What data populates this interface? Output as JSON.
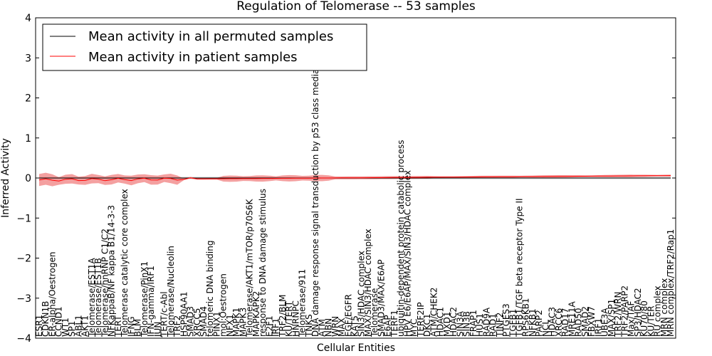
{
  "chart_data": {
    "type": "line",
    "title": "Regulation of Telomerase -- 53 samples",
    "xlabel": "Cellular Entities",
    "ylabel": "Inferred Activity",
    "ylim": [
      -4,
      4
    ],
    "yticks": [
      "4",
      "3",
      "2",
      "1",
      "0",
      "−1",
      "−2",
      "−3",
      "−4"
    ],
    "grid": false,
    "legend_position": "top-left",
    "legend": [
      {
        "label": "Mean activity in all permuted samples",
        "color": "#000000"
      },
      {
        "label": "Mean activity in patient samples",
        "color": "#ff0000"
      }
    ],
    "band_colors": {
      "patient": "#f08080",
      "permuted": "#c8c8c8"
    },
    "entities": [
      "ESR1",
      "CDKN1B",
      "ER-alpha/Oestrogen",
      "CCND1",
      "WT1",
      "SP1",
      "ABL1",
      "AKT1",
      "Telomerase/EST1A",
      "Telomerase/EST1B",
      "Telomerase/hnRNP C1/C2",
      "NFKappaB/NF kappa B1/14-3-3",
      "TERT",
      "Telomerase catalytic core complex",
      "IFNG",
      "BLM",
      "Telomerase/PinX1",
      "IFN-gamma/IRF1",
      "JUN",
      "TERT/c-Abl",
      "Telomerase/Nucleolin",
      "TRF2",
      "HSP90AA1",
      "SMAD3",
      "XRCC5",
      "SMAD4",
      "telomeric DNA binding",
      "PINX1",
      "mol:Oestrogen",
      "NFX1",
      "MAPK1",
      "MAPK3",
      "Telomerase/AKT1/mTOR/p70S6K",
      "MAPKAPK2",
      "response to DNA damage stimulus",
      "E2F1",
      "IRF1",
      "TRF2/BLM",
      "KU/TERT",
      "HNRNPC",
      "Telomerase/911",
      "TNKS",
      "DNA damage response signal transduction by p53 class mediator",
      "ATM",
      "NBN",
      "WRN",
      "MAX",
      "EGF/EGFR",
      "KAT5",
      "SIN3/HDAC complex",
      "MAX/SIN3/HDAC complex",
      "Telomerase",
      "SMAD3/MAX/E6AP",
      "E6AP",
      "TERF1",
      "ubiquitin-dependent protein catabolic process",
      "HPV E6/E6AP/MAX/SIN3/HDAC complex",
      "MYC",
      "TERF2IP",
      "DKC1",
      "ATM/CHEK2",
      "HDAC1",
      "MXD1",
      "HDAC2",
      "SIN3A",
      "SIN3B",
      "FRAP1",
      "HUS1",
      "RAD9A",
      "RAD1",
      "TINF2",
      "PTGES3",
      "TGFB1",
      "TGFB1/TGF beta receptor Type II",
      "RPS6KB1",
      "NFKB1",
      "PARP2",
      "NCL",
      "HDAC3",
      "XRCC6",
      "RAD17",
      "MRE11A",
      "RAD50",
      "SMAD2",
      "FBXW7",
      "IRF1",
      "UBE3A",
      "MAX/SP1",
      "TRF2/WRN",
      "TRF2/PARP2",
      "Max/TAF",
      "SP3/HDAC2",
      "KU70/80",
      "KU/TER",
      "RU complex",
      "MRN complex",
      "MRN complex/TRF2/Rap1"
    ],
    "series": [
      {
        "name": "Mean activity in all permuted samples",
        "value_at_all_entities": 0.0
      },
      {
        "name": "Mean activity in patient samples",
        "start_value": -0.05,
        "end_value": 0.06
      }
    ]
  }
}
